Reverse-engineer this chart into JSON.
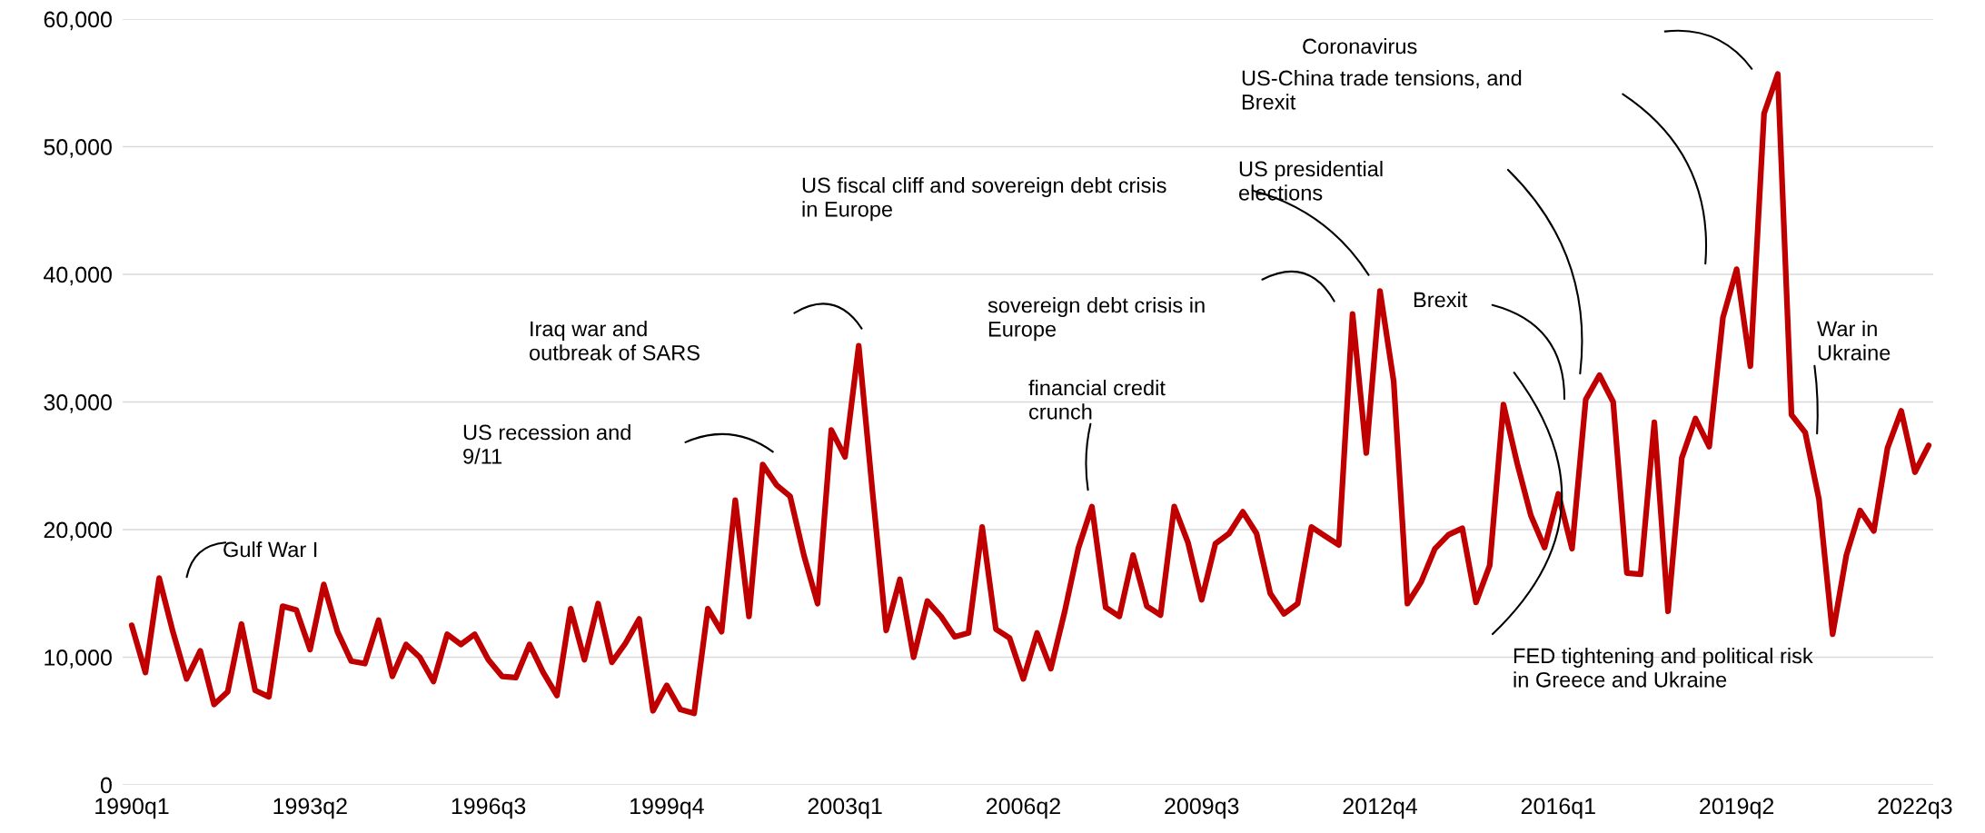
{
  "chart_data": {
    "type": "line",
    "categories": [
      "1990q1",
      null,
      null,
      null,
      null,
      null,
      null,
      null,
      null,
      null,
      null,
      null,
      null,
      "1993q2",
      null,
      null,
      null,
      null,
      null,
      null,
      null,
      null,
      null,
      null,
      null,
      null,
      "1996q3",
      null,
      null,
      null,
      null,
      null,
      null,
      null,
      null,
      null,
      null,
      null,
      null,
      "1999q4",
      null,
      null,
      null,
      null,
      null,
      null,
      null,
      null,
      null,
      null,
      null,
      null,
      "2003q1",
      null,
      null,
      null,
      null,
      null,
      null,
      null,
      null,
      null,
      null,
      null,
      null,
      "2006q2",
      null,
      null,
      null,
      null,
      null,
      null,
      null,
      null,
      null,
      null,
      null,
      null,
      "2009q3",
      null,
      null,
      null,
      null,
      null,
      null,
      null,
      null,
      null,
      null,
      null,
      null,
      "2012q4",
      null,
      null,
      null,
      null,
      null,
      null,
      null,
      null,
      null,
      null,
      null,
      null,
      "2016q1",
      null,
      null,
      null,
      null,
      null,
      null,
      null,
      null,
      null,
      null,
      null,
      null,
      "2019q2",
      null,
      null,
      null,
      null,
      null,
      null,
      null,
      null,
      null,
      null,
      null,
      null,
      "2022q3",
      null
    ],
    "series": [
      {
        "color": "#c00000",
        "values": [
          12500,
          8800,
          16200,
          12000,
          8300,
          10500,
          6300,
          7300,
          12600,
          7400,
          6900,
          14000,
          13700,
          10600,
          15700,
          12000,
          9700,
          9500,
          12900,
          8500,
          11000,
          10000,
          8100,
          11800,
          11000,
          11800,
          9800,
          8500,
          8400,
          11000,
          8800,
          7000,
          13800,
          9800,
          14200,
          9600,
          11100,
          13000,
          5800,
          7800,
          5900,
          5600,
          13800,
          12000,
          22300,
          13200,
          25100,
          23500,
          22600,
          18000,
          14200,
          27800,
          25700,
          34400,
          23000,
          12100,
          16100,
          10000,
          14400,
          13200,
          11600,
          11900,
          20200,
          12200,
          11500,
          8300,
          11900,
          9100,
          13500,
          18500,
          21800,
          13900,
          13200,
          18000,
          14000,
          13300,
          21800,
          19000,
          14500,
          18900,
          19700,
          21400,
          19700,
          15000,
          13400,
          14200,
          20200,
          19500,
          18800,
          36900,
          26000,
          38700,
          31600,
          14200,
          15900,
          18500,
          19600,
          20100,
          14300,
          17200,
          29800,
          25200,
          21100,
          18600,
          22800,
          18500,
          30200,
          32100,
          30000,
          16600,
          16500,
          28400,
          13600,
          25600,
          28700,
          26500,
          36600,
          40400,
          32800,
          52600,
          55700,
          29000,
          27600,
          22400,
          11800,
          18000,
          21500,
          19900,
          26400,
          29300,
          24500,
          26600
        ]
      }
    ],
    "ylim": [
      0,
      60000
    ],
    "yticks": [
      {
        "value": 0,
        "label": "0"
      },
      {
        "value": 10000,
        "label": "10,000"
      },
      {
        "value": 20000,
        "label": "20,000"
      },
      {
        "value": 30000,
        "label": "30,000"
      },
      {
        "value": 40000,
        "label": "40,000"
      },
      {
        "value": 50000,
        "label": "50,000"
      },
      {
        "value": 60000,
        "label": "60,000"
      }
    ],
    "grid": "y",
    "marker": "none",
    "line_style": "solid",
    "annotations": [
      "Gulf War I",
      "US recession and\n9/11",
      "Iraq war and\noutbreak of SARS",
      "US fiscal cliff and sovereign debt crisis\nin Europe",
      "sovereign debt crisis in\nEurope",
      "financial credit\ncrunch",
      "US presidential\nelections",
      "US-China trade tensions, and\nBrexit",
      "Coronavirus",
      "Brexit",
      "FED tightening and political risk\nin Greece and Ukraine",
      "War in\nUkraine"
    ]
  }
}
